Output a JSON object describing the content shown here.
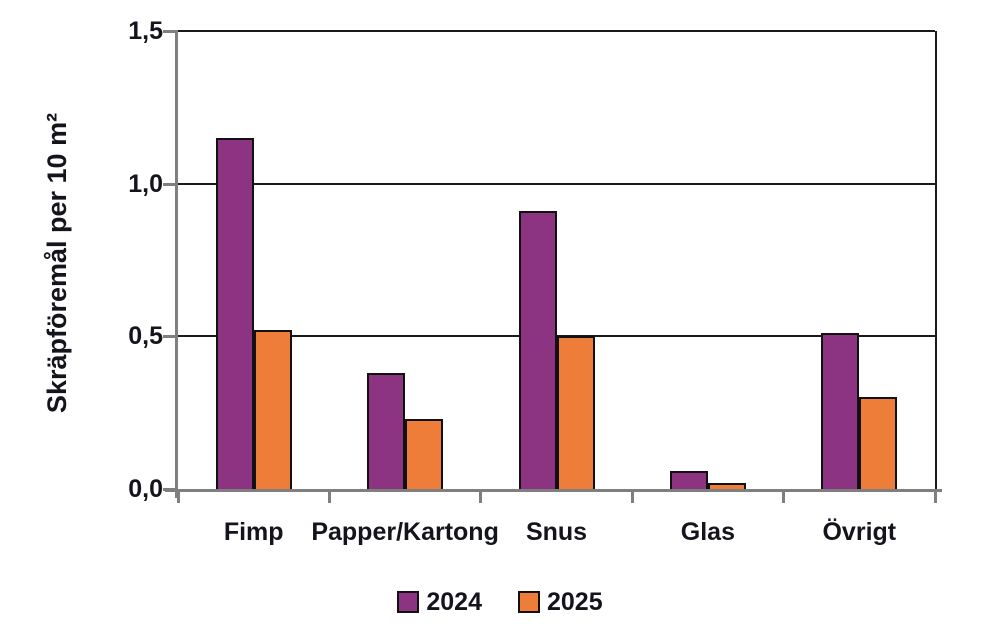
{
  "chart_data": {
    "type": "bar",
    "title": "",
    "categories": [
      "Fimp",
      "Papper/Kartong",
      "Snus",
      "Glas",
      "Övrigt"
    ],
    "series": [
      {
        "name": "2024",
        "color": "#8C3382",
        "values": [
          1.15,
          0.38,
          0.91,
          0.06,
          0.51
        ]
      },
      {
        "name": "2025",
        "color": "#EE7D3A",
        "values": [
          0.52,
          0.23,
          0.5,
          0.02,
          0.3
        ]
      }
    ],
    "xlabel": "",
    "ylabel": "Skräpföremål per 10 m²",
    "ylim": [
      0,
      1.5
    ],
    "yticks": [
      0,
      0.5,
      1.0,
      1.5
    ],
    "ytick_labels": [
      "0,0",
      "0,5",
      "1,0",
      "1,5"
    ],
    "grid": true,
    "legend_position": "bottom",
    "colors": {
      "series_2024": "#8C3382",
      "series_2025": "#EE7D3A",
      "gridline": "#1a1a1a",
      "axis": "#7f7f7f",
      "text": "#14141c"
    }
  }
}
